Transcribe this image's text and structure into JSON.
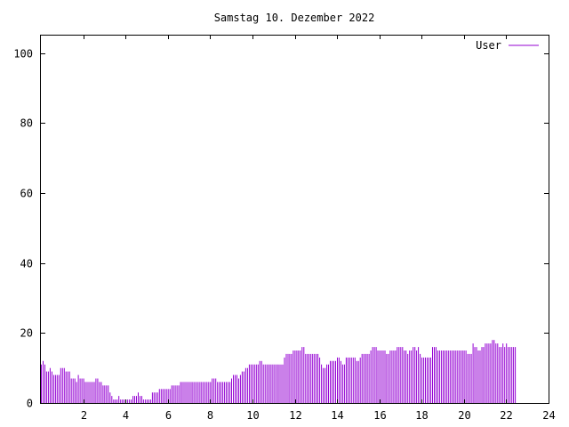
{
  "chart_data": {
    "type": "bar",
    "title": "Samstag 10. Dezember 2022",
    "xlabel": "",
    "ylabel": "",
    "xlim": [
      0,
      24
    ],
    "ylim": [
      0,
      105
    ],
    "x_ticks": [
      2,
      4,
      6,
      8,
      10,
      12,
      14,
      16,
      18,
      20,
      22,
      24
    ],
    "y_ticks": [
      0,
      20,
      40,
      60,
      80,
      100
    ],
    "grid": false,
    "legend_position": "top-right",
    "series": [
      {
        "name": "User",
        "color": "#9400d3",
        "x_step_hours": 0.0833,
        "values": [
          11,
          12,
          11,
          9,
          9,
          10,
          9,
          8,
          8,
          8,
          8,
          10,
          10,
          10,
          9,
          9,
          9,
          7,
          7,
          7,
          6,
          8,
          7,
          7,
          7,
          6,
          6,
          6,
          6,
          6,
          6,
          7,
          7,
          6,
          6,
          5,
          5,
          5,
          5,
          3,
          2,
          1,
          1,
          1,
          2,
          1,
          1,
          1,
          1,
          1,
          1,
          1,
          2,
          2,
          2,
          3,
          2,
          2,
          1,
          1,
          1,
          1,
          1,
          3,
          3,
          3,
          3,
          4,
          4,
          4,
          4,
          4,
          4,
          4,
          5,
          5,
          5,
          5,
          5,
          6,
          6,
          6,
          6,
          6,
          6,
          6,
          6,
          6,
          6,
          6,
          6,
          6,
          6,
          6,
          6,
          6,
          6,
          7,
          7,
          7,
          6,
          6,
          6,
          6,
          6,
          6,
          6,
          6,
          7,
          8,
          8,
          8,
          7,
          8,
          9,
          9,
          10,
          10,
          11,
          11,
          11,
          11,
          11,
          11,
          12,
          12,
          11,
          11,
          11,
          11,
          11,
          11,
          11,
          11,
          11,
          11,
          11,
          11,
          13,
          14,
          14,
          14,
          14,
          15,
          15,
          15,
          15,
          15,
          16,
          16,
          14,
          14,
          14,
          14,
          14,
          14,
          14,
          14,
          13,
          11,
          10,
          10,
          11,
          11,
          12,
          12,
          12,
          12,
          13,
          13,
          12,
          11,
          11,
          13,
          13,
          13,
          13,
          13,
          13,
          12,
          12,
          13,
          14,
          14,
          14,
          14,
          14,
          15,
          16,
          16,
          16,
          15,
          15,
          15,
          15,
          15,
          14,
          14,
          15,
          15,
          15,
          15,
          16,
          16,
          16,
          16,
          15,
          15,
          14,
          15,
          15,
          16,
          16,
          15,
          16,
          14,
          13,
          13,
          13,
          13,
          13,
          13,
          16,
          16,
          16,
          15,
          15,
          15,
          15,
          15,
          15,
          15,
          15,
          15,
          15,
          15,
          15,
          15,
          15,
          15,
          15,
          15,
          14,
          14,
          14,
          17,
          16,
          16,
          15,
          15,
          16,
          16,
          17,
          17,
          17,
          17,
          18,
          18,
          17,
          17,
          16,
          16,
          17,
          16,
          17,
          16,
          16,
          16,
          16,
          16
        ]
      }
    ]
  }
}
